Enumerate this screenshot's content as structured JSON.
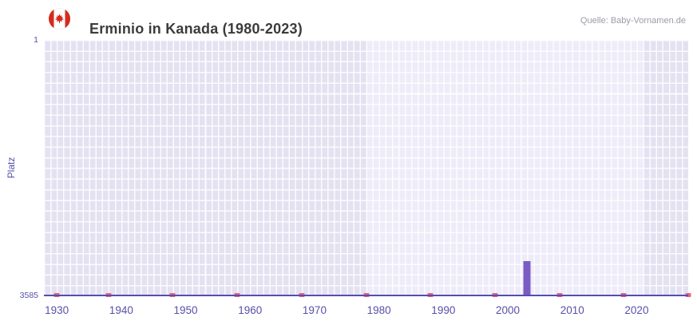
{
  "header": {
    "title": "Erminio in Kanada (1980-2023)",
    "source": "Quelle: Baby-Vornamen.de",
    "flag_icon": "canada-flag-icon"
  },
  "chart_data": {
    "type": "bar",
    "title": "Erminio in Kanada (1980-2023)",
    "xlabel": "",
    "ylabel": "Platz",
    "y_axis": {
      "top_label": "1",
      "bottom_label": "3585",
      "min": 1,
      "max": 3585,
      "inverted": true
    },
    "x_axis": {
      "min": 1928,
      "max": 2028,
      "ticks": [
        1930,
        1940,
        1950,
        1960,
        1970,
        1980,
        1990,
        2000,
        2010,
        2020
      ]
    },
    "series": [
      {
        "name": "Platz",
        "points": [
          {
            "year": 2003,
            "rank": 3100
          }
        ]
      }
    ],
    "highlight_band": {
      "from": 1978,
      "to": 2021
    },
    "bottom_marks_years": [
      1930,
      1938,
      1948,
      1958,
      1968,
      1978,
      1988,
      1998,
      2008,
      2018,
      2028
    ],
    "grid": true,
    "legend": false,
    "colors": {
      "bar": "#7a5cc4",
      "axis": "#554db0",
      "tick_label": "#5650a8",
      "band_dark": "#e4e1f1",
      "band_light": "#eeecf8",
      "gridline": "#ffffff",
      "bottom_mark": "#e8647b",
      "flag_red": "#d52b1e"
    }
  }
}
